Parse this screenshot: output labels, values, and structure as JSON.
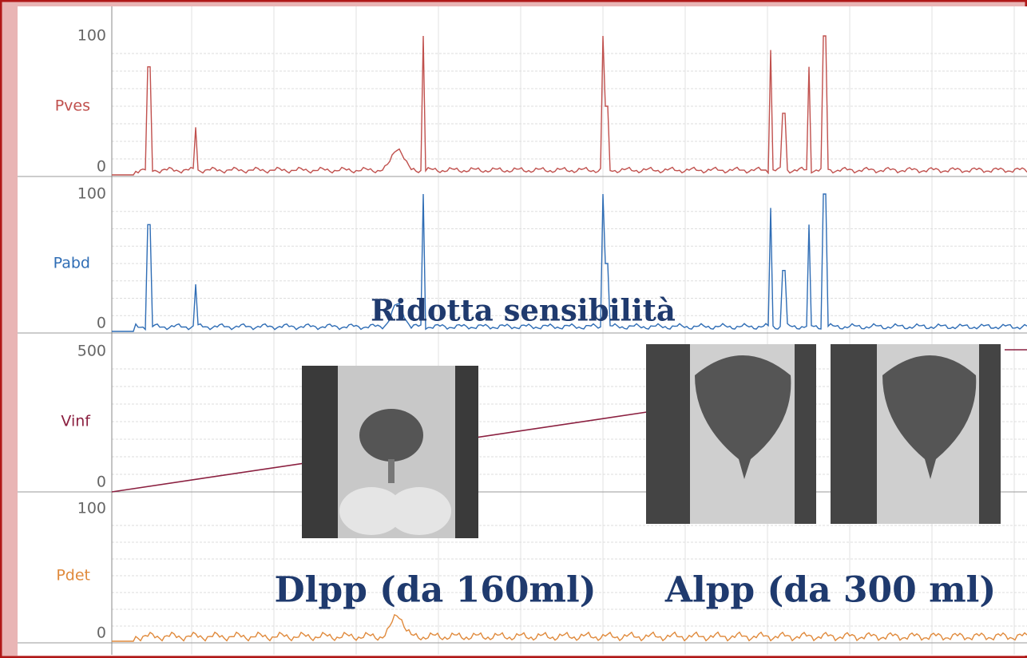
{
  "panels": [
    {
      "label": "Pves",
      "ticks": [
        "100",
        "0"
      ]
    },
    {
      "label": "Pabd",
      "ticks": [
        "100",
        "0"
      ]
    },
    {
      "label": "Vinf",
      "ticks": [
        "500",
        "0"
      ]
    },
    {
      "label": "Pdet",
      "ticks": [
        "100",
        "0"
      ]
    }
  ],
  "annotations": {
    "sensitivity": "Ridotta sensibilità",
    "dlpp": "Dlpp (da 160ml)",
    "alpp": "Alpp (da 300 ml)"
  }
}
